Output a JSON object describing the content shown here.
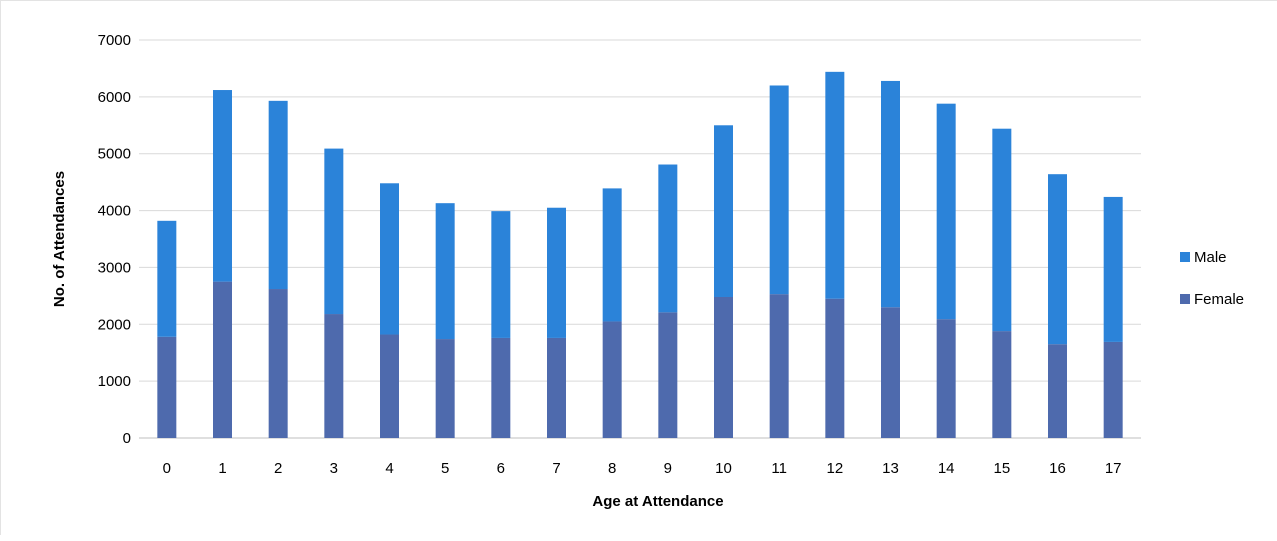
{
  "chart_data": {
    "type": "bar",
    "stacked": true,
    "categories": [
      "0",
      "1",
      "2",
      "3",
      "4",
      "5",
      "6",
      "7",
      "8",
      "9",
      "10",
      "11",
      "12",
      "13",
      "14",
      "15",
      "16",
      "17"
    ],
    "series": [
      {
        "name": "Female",
        "color": "#4e6aad",
        "values": [
          1780,
          2750,
          2620,
          2180,
          1820,
          1740,
          1760,
          1760,
          2050,
          2210,
          2480,
          2530,
          2450,
          2300,
          2090,
          1880,
          1650,
          1690
        ]
      },
      {
        "name": "Male",
        "color": "#2b83d9",
        "values": [
          2040,
          3370,
          3310,
          2910,
          2660,
          2390,
          2230,
          2290,
          2340,
          2600,
          3020,
          3670,
          3990,
          3980,
          3790,
          3560,
          2990,
          2550
        ]
      }
    ],
    "xlabel": "Age at Attendance",
    "ylabel": "No. of Attendances",
    "ylim": [
      0,
      7000
    ],
    "yticks": [
      0,
      1000,
      2000,
      3000,
      4000,
      5000,
      6000,
      7000
    ],
    "grid": true,
    "legend": {
      "position": "right",
      "entries": [
        "Male",
        "Female"
      ]
    }
  }
}
